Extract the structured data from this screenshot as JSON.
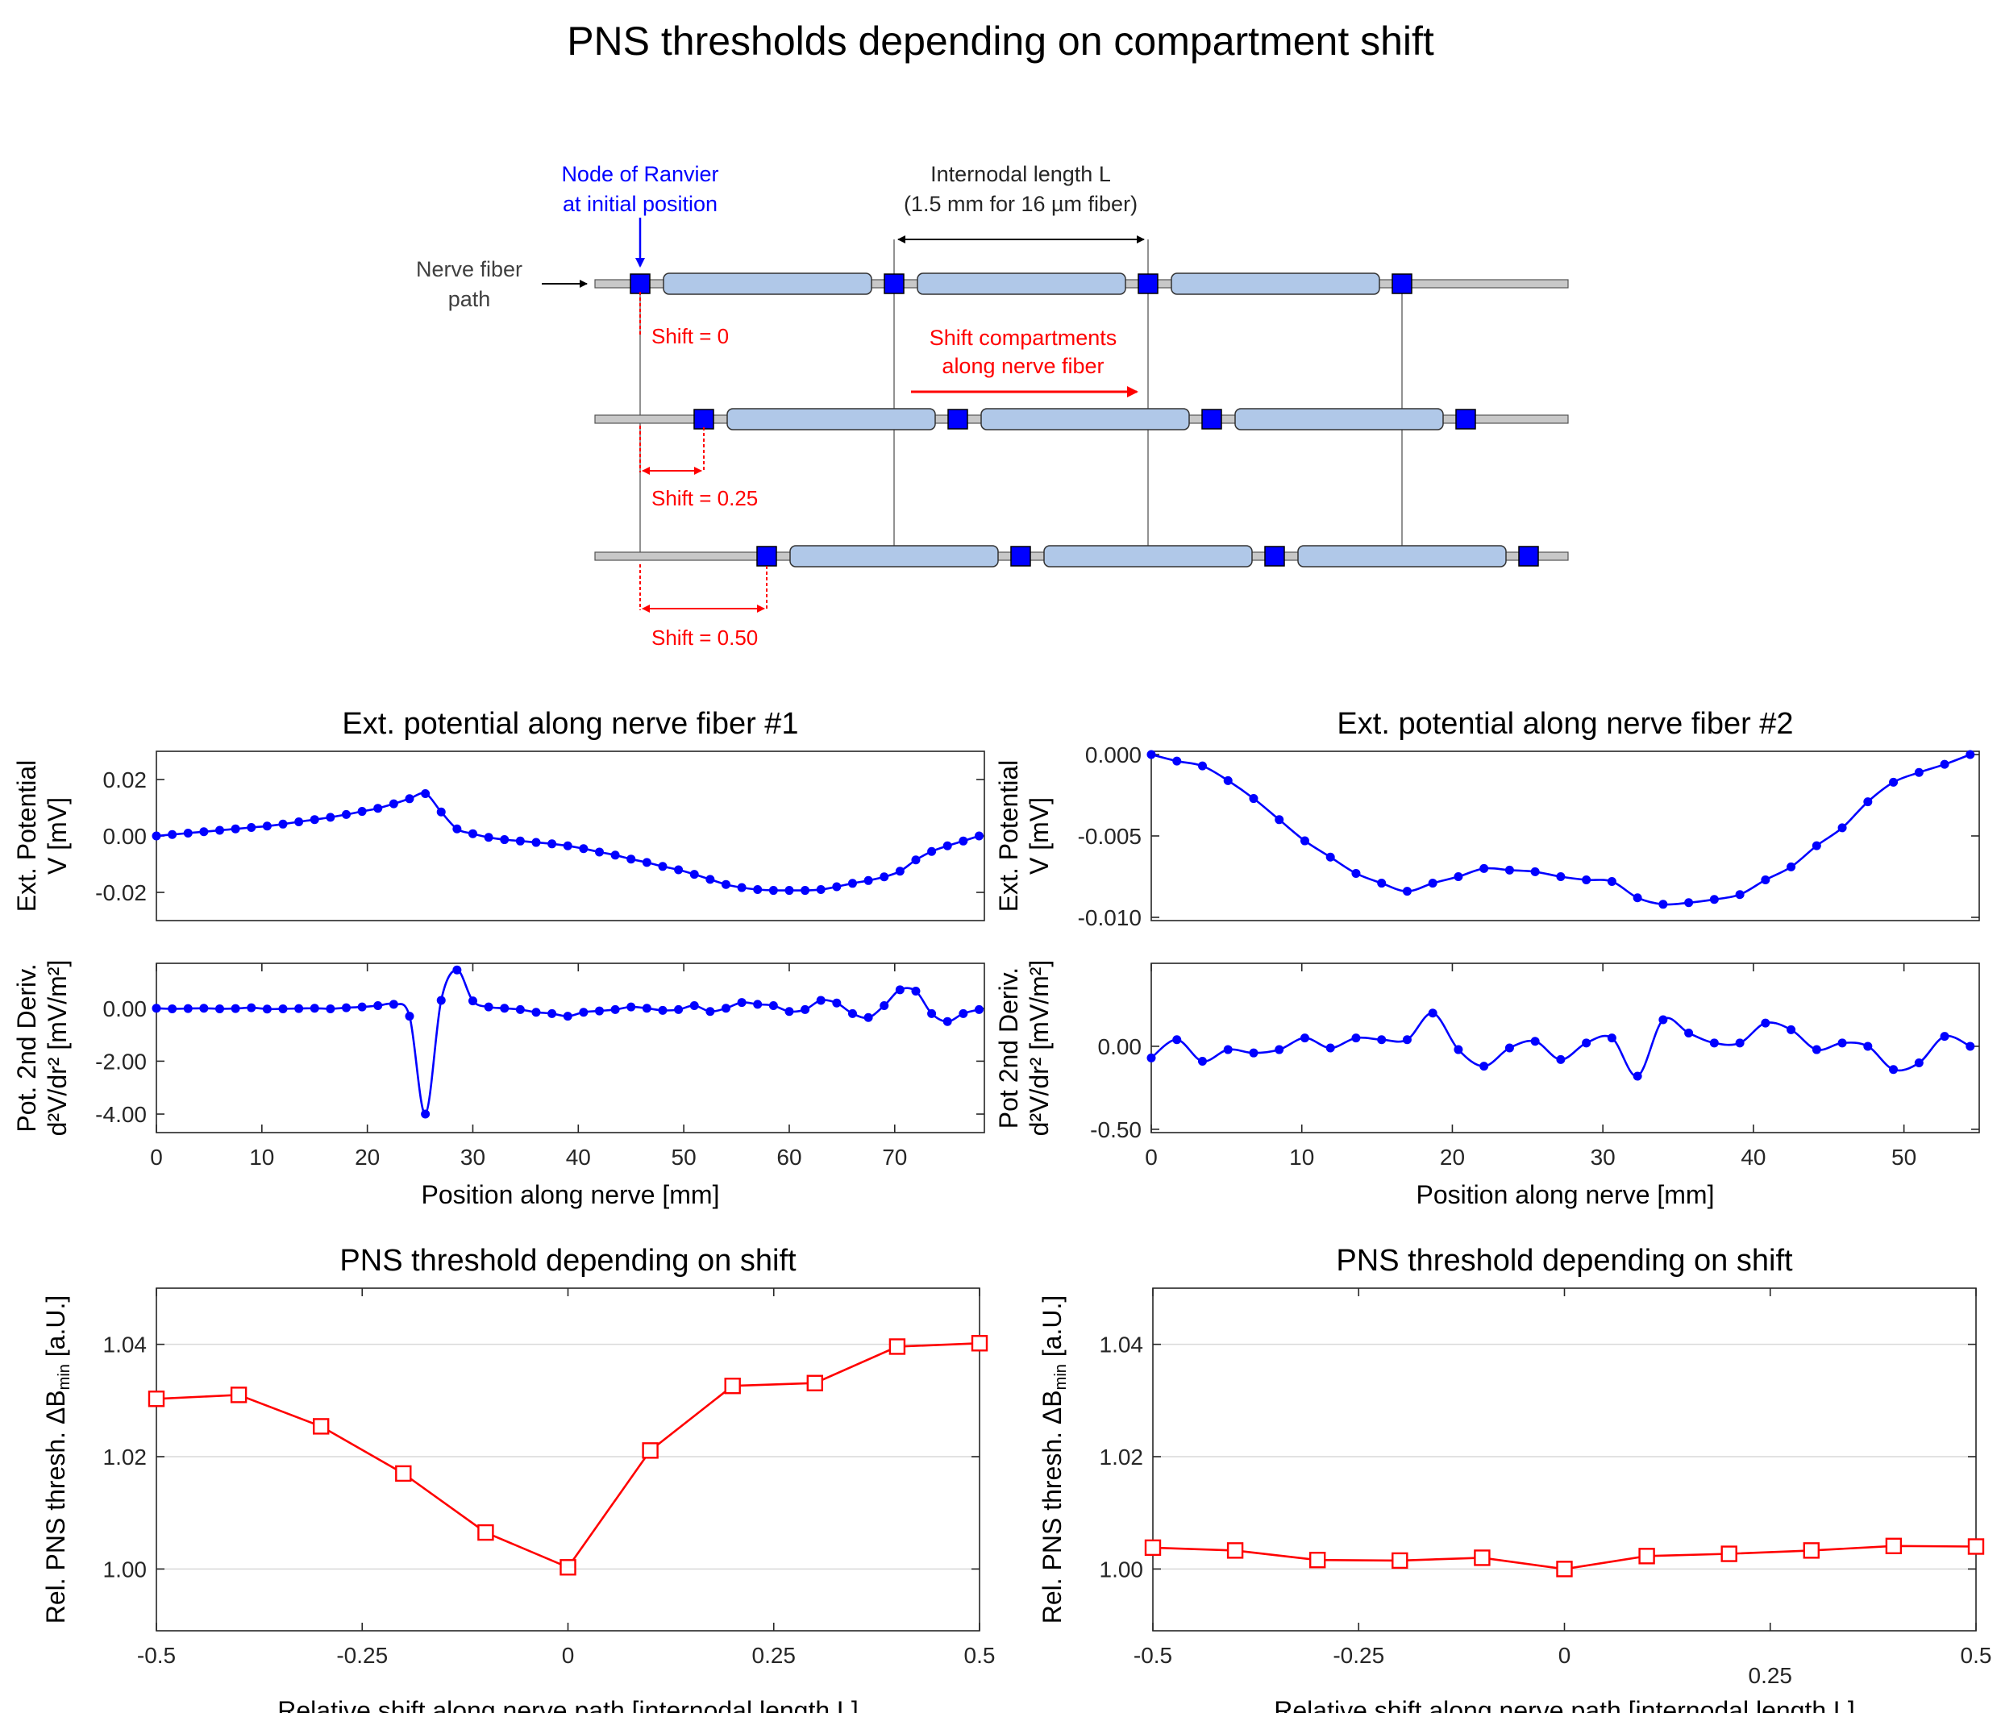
{
  "figure_title": "PNS thresholds depending on compartment shift",
  "diagram": {
    "node_label_line1": "Node of Ranvier",
    "node_label_line2": "at initial position",
    "internodal_line1": "Internodal length L",
    "internodal_line2": "(1.5 mm for 16 µm fiber)",
    "fiber_path_line1": "Nerve fiber",
    "fiber_path_line2": "path",
    "shift_arrow_line1": "Shift compartments",
    "shift_arrow_line2": "along nerve fiber",
    "shift_labels": [
      "Shift = 0",
      "Shift = 0.25",
      "Shift = 0.50"
    ],
    "colors": {
      "node": "#0000ff",
      "internode": "#b0c8e8",
      "shift": "#ff0000",
      "fiber": "#c8c8c8"
    }
  },
  "chart_data": [
    {
      "id": "pot1",
      "type": "line",
      "title": "Ext. potential along nerve fiber #1",
      "ylabel_line1": "Ext. Potential",
      "ylabel_line2": "V [mV]",
      "xlim": [
        0,
        78.5
      ],
      "ylim": [
        -0.03,
        0.03
      ],
      "yticks": [
        0.02,
        0.0,
        -0.02
      ],
      "ytick_labels": [
        "0.02",
        "0.00",
        "-0.02"
      ],
      "color": "#0000ff",
      "x": [
        0,
        1.5,
        3,
        4.5,
        6,
        7.5,
        9,
        10.5,
        12,
        13.5,
        15,
        16.5,
        18,
        19.5,
        21,
        22.5,
        24,
        25.5,
        27,
        28.5,
        30,
        31.5,
        33,
        34.5,
        36,
        37.5,
        39,
        40.5,
        42,
        43.5,
        45,
        46.5,
        48,
        49.5,
        51,
        52.5,
        54,
        55.5,
        57,
        58.5,
        60,
        61.5,
        63,
        64.5,
        66,
        67.5,
        69,
        70.5,
        72,
        73.5,
        75,
        76.5,
        78
      ],
      "y": [
        0.0,
        0.0005,
        0.001,
        0.0015,
        0.002,
        0.0025,
        0.003,
        0.0035,
        0.0042,
        0.005,
        0.0058,
        0.0066,
        0.0076,
        0.0087,
        0.0098,
        0.0114,
        0.0132,
        0.015,
        0.0085,
        0.0025,
        0.0008,
        -0.0005,
        -0.0013,
        -0.0018,
        -0.0023,
        -0.0028,
        -0.0035,
        -0.0045,
        -0.0057,
        -0.0068,
        -0.0082,
        -0.0094,
        -0.0108,
        -0.012,
        -0.0136,
        -0.0154,
        -0.0172,
        -0.0183,
        -0.019,
        -0.0193,
        -0.0193,
        -0.0193,
        -0.019,
        -0.018,
        -0.0168,
        -0.0158,
        -0.0145,
        -0.0125,
        -0.0085,
        -0.0055,
        -0.0035,
        -0.0018,
        0.0
      ]
    },
    {
      "id": "der1",
      "type": "line",
      "ylabel_line1": "Pot. 2nd Deriv.",
      "ylabel_line2": "d²V/dr²  [mV/m²]",
      "xlim": [
        0,
        78.5
      ],
      "ylim": [
        -4.7,
        1.7
      ],
      "yticks": [
        0.0,
        -2.0,
        -4.0
      ],
      "ytick_labels": [
        "0.00",
        "-2.00",
        "-4.00"
      ],
      "xticks": [
        0,
        10,
        20,
        30,
        40,
        50,
        60,
        70
      ],
      "xtick_labels": [
        "0",
        "10",
        "20",
        "30",
        "40",
        "50",
        "60",
        "70"
      ],
      "xlabel": "Position along nerve [mm]",
      "color": "#0000ff",
      "x": [
        0,
        1.5,
        3,
        4.5,
        6,
        7.5,
        9,
        10.5,
        12,
        13.5,
        15,
        16.5,
        18,
        19.5,
        21,
        22.5,
        24,
        25.5,
        27,
        28.5,
        30,
        31.5,
        33,
        34.5,
        36,
        37.5,
        39,
        40.5,
        42,
        43.5,
        45,
        46.5,
        48,
        49.5,
        51,
        52.5,
        54,
        55.5,
        57,
        58.5,
        60,
        61.5,
        63,
        64.5,
        66,
        67.5,
        69,
        70.5,
        72,
        73.5,
        75,
        76.5,
        78
      ],
      "y": [
        0.0,
        -0.02,
        -0.01,
        0.0,
        -0.02,
        -0.01,
        0.02,
        -0.03,
        -0.02,
        -0.01,
        0.0,
        -0.02,
        0.02,
        0.05,
        0.1,
        0.15,
        -0.3,
        -4.0,
        0.3,
        1.45,
        0.28,
        0.05,
        0.0,
        -0.05,
        -0.15,
        -0.2,
        -0.3,
        -0.15,
        -0.1,
        -0.05,
        0.05,
        0.0,
        -0.08,
        -0.05,
        0.1,
        -0.12,
        0.0,
        0.22,
        0.15,
        0.1,
        -0.12,
        -0.05,
        0.3,
        0.2,
        -0.2,
        -0.35,
        0.1,
        0.7,
        0.65,
        -0.2,
        -0.5,
        -0.2,
        -0.05
      ]
    },
    {
      "id": "pot2",
      "type": "line",
      "title": "Ext. potential along nerve fiber #2",
      "ylabel_line1": "Ext. Potential",
      "ylabel_line2": "V [mV]",
      "xlim": [
        0,
        55
      ],
      "ylim": [
        -0.0102,
        0.0002
      ],
      "yticks": [
        0.0,
        -0.005,
        -0.01
      ],
      "ytick_labels": [
        "0.000",
        "-0.005",
        "-0.010"
      ],
      "color": "#0000ff",
      "x": [
        0,
        1.7,
        3.4,
        5.1,
        6.8,
        8.5,
        10.2,
        11.9,
        13.6,
        15.3,
        17,
        18.7,
        20.4,
        22.1,
        23.8,
        25.5,
        27.2,
        28.9,
        30.6,
        32.3,
        34,
        35.7,
        37.4,
        39.1,
        40.8,
        42.5,
        44.2,
        45.9,
        47.6,
        49.3,
        51,
        52.7,
        54.4
      ],
      "y": [
        0.0,
        -0.0004,
        -0.0007,
        -0.0016,
        -0.0027,
        -0.004,
        -0.0053,
        -0.0063,
        -0.0073,
        -0.0079,
        -0.0084,
        -0.0079,
        -0.0075,
        -0.007,
        -0.0071,
        -0.0072,
        -0.0075,
        -0.0077,
        -0.0078,
        -0.0088,
        -0.0092,
        -0.0091,
        -0.0089,
        -0.0086,
        -0.0077,
        -0.0069,
        -0.0056,
        -0.0045,
        -0.0029,
        -0.0017,
        -0.0011,
        -0.0006,
        0.0
      ]
    },
    {
      "id": "der2",
      "type": "line",
      "ylabel_line1": "Pot 2nd Deriv.",
      "ylabel_line2": "d²V/dr²  [mV/m²]",
      "xlim": [
        0,
        55
      ],
      "ylim": [
        -0.52,
        0.5
      ],
      "yticks": [
        0.0,
        -0.5
      ],
      "ytick_labels": [
        "0.00",
        "-0.50"
      ],
      "xticks": [
        0,
        10,
        20,
        30,
        40,
        50
      ],
      "xtick_labels": [
        "0",
        "10",
        "20",
        "30",
        "40",
        "50"
      ],
      "xlabel": "Position along nerve [mm]",
      "color": "#0000ff",
      "x": [
        0,
        1.7,
        3.4,
        5.1,
        6.8,
        8.5,
        10.2,
        11.9,
        13.6,
        15.3,
        17,
        18.7,
        20.4,
        22.1,
        23.8,
        25.5,
        27.2,
        28.9,
        30.6,
        32.3,
        34,
        35.7,
        37.4,
        39.1,
        40.8,
        42.5,
        44.2,
        45.9,
        47.6,
        49.3,
        51,
        52.7,
        54.4
      ],
      "y": [
        -0.07,
        0.04,
        -0.09,
        -0.02,
        -0.04,
        -0.02,
        0.05,
        -0.01,
        0.05,
        0.04,
        0.04,
        0.2,
        -0.02,
        -0.12,
        -0.01,
        0.03,
        -0.08,
        0.02,
        0.05,
        -0.18,
        0.16,
        0.08,
        0.02,
        0.02,
        0.14,
        0.1,
        -0.02,
        0.02,
        0.0,
        -0.14,
        -0.1,
        0.06,
        0.0
      ]
    },
    {
      "id": "thr1",
      "type": "line",
      "title": "PNS threshold depending on shift",
      "ylabel": "Rel. PNS thresh. ΔB",
      "ylabel_sub": "min",
      "ylabel_unit": " [a.U.]",
      "xlabel": "Relative shift along nerve path [internodal length L]",
      "xlim": [
        -0.5,
        0.5
      ],
      "ylim": [
        0.989,
        1.05
      ],
      "yticks": [
        1.0,
        1.02,
        1.04
      ],
      "ytick_labels": [
        "1.00",
        "1.02",
        "1.04"
      ],
      "xticks": [
        -0.5,
        -0.25,
        0,
        0.25,
        0.5
      ],
      "xtick_labels": [
        "-0.5",
        "-0.25",
        "0",
        "0.25",
        "0.5"
      ],
      "color": "#ff0000",
      "x": [
        -0.5,
        -0.4,
        -0.3,
        -0.2,
        -0.1,
        0.0,
        0.1,
        0.2,
        0.3,
        0.4,
        0.5
      ],
      "y": [
        1.0303,
        1.031,
        1.0254,
        1.017,
        1.0065,
        1.0003,
        1.0211,
        1.0326,
        1.0331,
        1.0396,
        1.0402
      ]
    },
    {
      "id": "thr2",
      "type": "line",
      "title": "PNS threshold depending on shift",
      "ylabel": "Rel. PNS thresh. ΔB",
      "ylabel_sub": "min",
      "ylabel_unit": " [a.U.]",
      "xlabel": "Relative shift along nerve path [internodal length L]",
      "xlim": [
        -0.5,
        0.5
      ],
      "ylim": [
        0.989,
        1.05
      ],
      "yticks": [
        1.0,
        1.02,
        1.04
      ],
      "ytick_labels": [
        "1.00",
        "1.02",
        "1.04"
      ],
      "xticks": [
        -0.5,
        -0.25,
        0,
        0.25,
        0.5
      ],
      "xtick_labels": [
        "-0.5",
        "-0.25",
        "0",
        "0.25",
        "0.5"
      ],
      "color": "#ff0000",
      "x": [
        -0.5,
        -0.4,
        -0.3,
        -0.2,
        -0.1,
        0.0,
        0.1,
        0.2,
        0.3,
        0.4,
        0.5
      ],
      "y": [
        1.0038,
        1.0033,
        1.0016,
        1.0015,
        1.002,
        1.0,
        1.0023,
        1.0027,
        1.0033,
        1.0041,
        1.004
      ]
    }
  ]
}
